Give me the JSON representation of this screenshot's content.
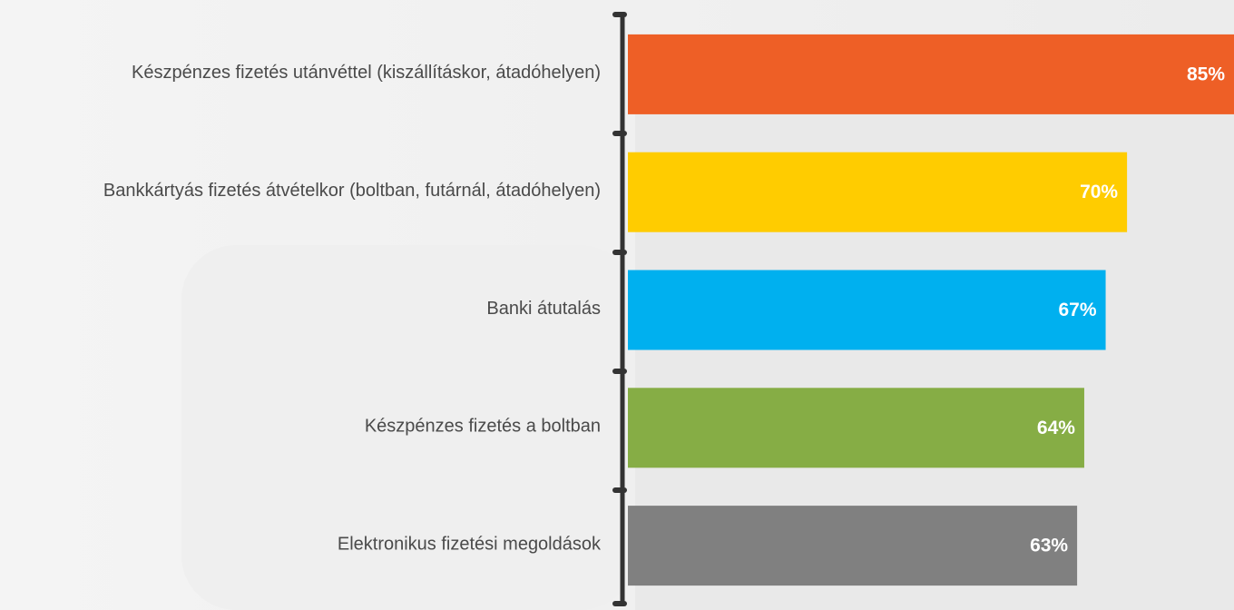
{
  "chart_data": {
    "type": "bar",
    "orientation": "horizontal",
    "categories": [
      "Készpénzes fizetés utánvéttel (kiszállításkor, átadóhelyen)",
      "Bankkártyás fizetés átvételkor (boltban, futárnál, átadóhelyen)",
      "Banki átutalás",
      "Készpénzes fizetés a boltban",
      "Elektronikus fizetési megoldások"
    ],
    "values": [
      85,
      70,
      67,
      64,
      63
    ],
    "value_labels": [
      "85%",
      "70%",
      "67%",
      "64%",
      "63%"
    ],
    "colors": [
      "#ee5f26",
      "#ffcc00",
      "#00b0ef",
      "#86ad45",
      "#808080"
    ]
  }
}
